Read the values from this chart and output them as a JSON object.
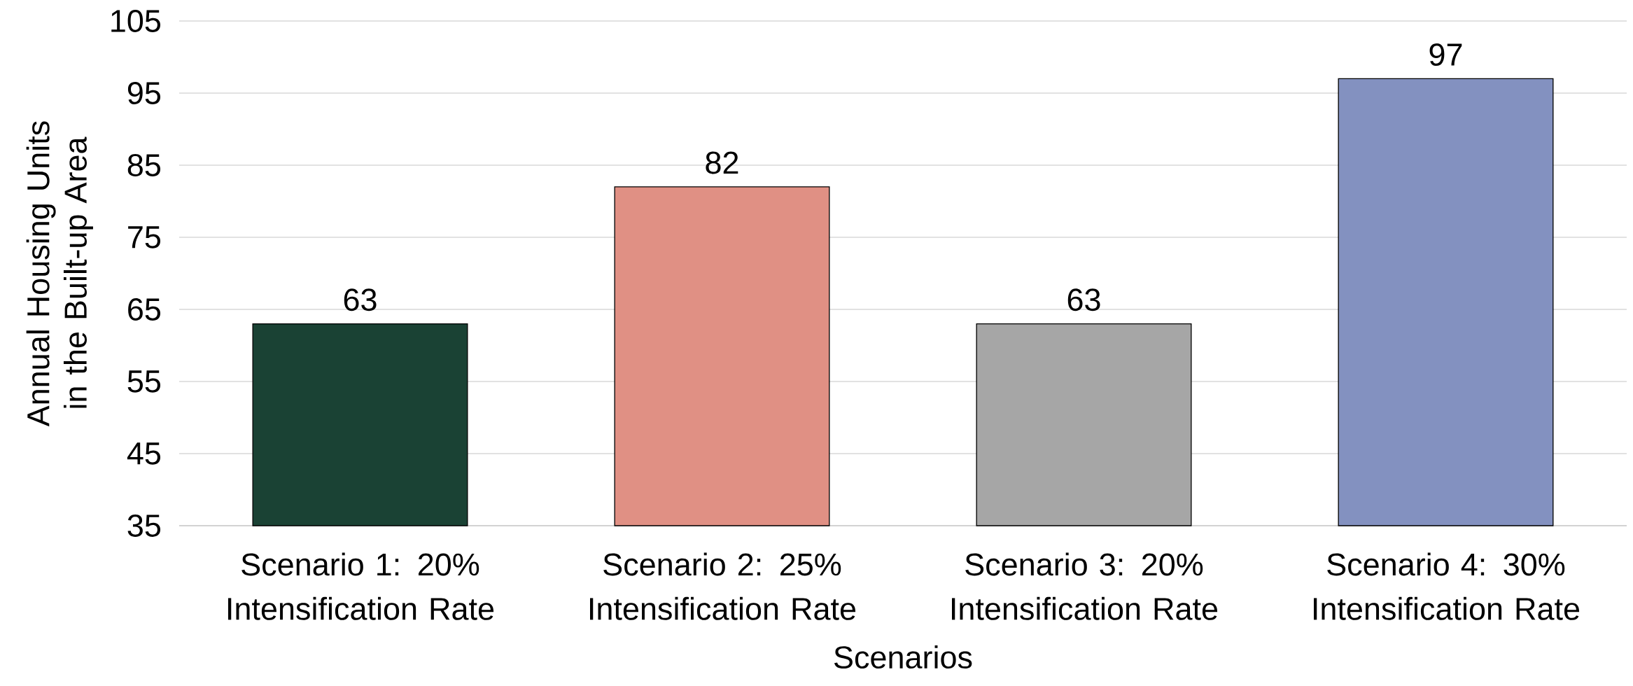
{
  "chart_data": {
    "type": "bar",
    "xlabel": "Scenarios",
    "ylabel": "Annual Housing Units in the Built-up Area",
    "categories": [
      "Scenario 1: 20% Intensification Rate",
      "Scenario 2: 25% Intensification Rate",
      "Scenario 3: 20% Intensification Rate",
      "Scenario 4: 30% Intensification Rate"
    ],
    "values": [
      63,
      82,
      63,
      97
    ],
    "colors": [
      "#1a4234",
      "#e09084",
      "#a6a6a6",
      "#8391c0"
    ],
    "ylim": [
      35,
      105
    ],
    "yticks": [
      35,
      45,
      55,
      65,
      75,
      85,
      95,
      105
    ],
    "grid": "y",
    "data_labels": true
  }
}
